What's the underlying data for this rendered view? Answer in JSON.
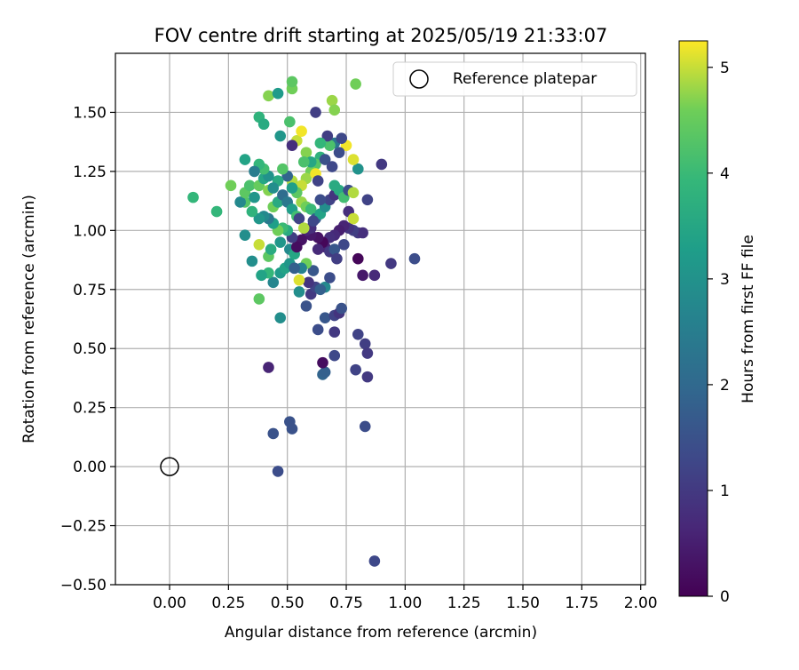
{
  "chart_data": {
    "type": "scatter",
    "title": "FOV centre drift starting at 2025/05/19 21:33:07",
    "xlabel": "Angular distance from reference (arcmin)",
    "ylabel": "Rotation from reference (arcmin)",
    "xlim": [
      -0.23,
      2.02
    ],
    "ylim": [
      -0.5,
      1.75
    ],
    "xticks": [
      0.0,
      0.25,
      0.5,
      0.75,
      1.0,
      1.25,
      1.5,
      1.75,
      2.0
    ],
    "xtick_labels": [
      "0.00",
      "0.25",
      "0.50",
      "0.75",
      "1.00",
      "1.25",
      "1.50",
      "1.75",
      "2.00"
    ],
    "yticks": [
      -0.5,
      -0.25,
      0.0,
      0.25,
      0.5,
      0.75,
      1.0,
      1.25,
      1.5
    ],
    "ytick_labels": [
      "−0.50",
      "−0.25",
      "0.00",
      "0.25",
      "0.50",
      "0.75",
      "1.00",
      "1.25",
      "1.50"
    ],
    "grid": true,
    "legend": {
      "position": "top-right",
      "label": "Reference platepar"
    },
    "reference_point": {
      "x": 0.0,
      "y": 0.0
    },
    "colorbar": {
      "label": "Hours from first FF file",
      "range": [
        0,
        5.25
      ],
      "ticks": [
        0,
        1,
        2,
        3,
        4,
        5
      ],
      "tick_labels": [
        "0",
        "1",
        "2",
        "3",
        "4",
        "5"
      ],
      "colormap": "viridis"
    },
    "points": [
      [
        0.87,
        -0.4,
        1.3
      ],
      [
        0.46,
        -0.02,
        1.4
      ],
      [
        0.44,
        0.14,
        1.5
      ],
      [
        0.52,
        0.16,
        1.5
      ],
      [
        0.51,
        0.19,
        1.5
      ],
      [
        0.83,
        0.17,
        1.4
      ],
      [
        0.65,
        0.39,
        1.9
      ],
      [
        0.66,
        0.4,
        1.8
      ],
      [
        0.7,
        0.47,
        1.3
      ],
      [
        0.79,
        0.41,
        1.2
      ],
      [
        0.84,
        0.38,
        1.0
      ],
      [
        0.65,
        0.44,
        0.2
      ],
      [
        0.42,
        0.42,
        0.6
      ],
      [
        0.8,
        0.56,
        1.2
      ],
      [
        0.83,
        0.52,
        1.1
      ],
      [
        0.84,
        0.48,
        1.0
      ],
      [
        0.63,
        0.58,
        1.4
      ],
      [
        0.7,
        0.57,
        1.0
      ],
      [
        0.66,
        0.63,
        1.6
      ],
      [
        0.7,
        0.64,
        1.2
      ],
      [
        0.72,
        0.65,
        0.9
      ],
      [
        0.73,
        0.67,
        1.5
      ],
      [
        0.58,
        0.68,
        1.5
      ],
      [
        0.47,
        0.63,
        2.9
      ],
      [
        0.38,
        0.71,
        4.4
      ],
      [
        0.55,
        0.74,
        2.9
      ],
      [
        0.6,
        0.73,
        1.0
      ],
      [
        0.62,
        0.76,
        1.2
      ],
      [
        0.66,
        0.76,
        2.8
      ],
      [
        0.64,
        0.75,
        1.8
      ],
      [
        0.68,
        0.8,
        1.4
      ],
      [
        0.59,
        0.78,
        0.9
      ],
      [
        0.55,
        0.79,
        5.1
      ],
      [
        0.61,
        0.83,
        1.6
      ],
      [
        0.58,
        0.86,
        4.6
      ],
      [
        0.56,
        0.84,
        2.6
      ],
      [
        0.47,
        0.82,
        3.2
      ],
      [
        0.49,
        0.84,
        3.4
      ],
      [
        0.51,
        0.86,
        3.1
      ],
      [
        0.44,
        0.78,
        2.7
      ],
      [
        0.42,
        0.82,
        3.9
      ],
      [
        0.39,
        0.81,
        3.4
      ],
      [
        0.35,
        0.87,
        2.9
      ],
      [
        0.32,
        0.98,
        2.9
      ],
      [
        0.38,
        0.94,
        5.0
      ],
      [
        0.42,
        0.89,
        4.4
      ],
      [
        0.43,
        0.92,
        3.6
      ],
      [
        0.47,
        0.95,
        3.1
      ],
      [
        0.51,
        0.92,
        2.8
      ],
      [
        0.53,
        0.9,
        3.5
      ],
      [
        0.53,
        0.84,
        1.8
      ],
      [
        0.8,
        0.88,
        0.1
      ],
      [
        0.82,
        0.81,
        0.4
      ],
      [
        0.87,
        0.81,
        0.7
      ],
      [
        0.94,
        0.86,
        1.0
      ],
      [
        1.04,
        0.88,
        1.4
      ],
      [
        0.8,
        0.99,
        1.0
      ],
      [
        0.82,
        0.99,
        0.8
      ],
      [
        0.78,
        1.0,
        1.1
      ],
      [
        0.76,
        1.01,
        0.9
      ],
      [
        0.74,
        1.02,
        0.6
      ],
      [
        0.72,
        1.0,
        0.5
      ],
      [
        0.7,
        0.98,
        0.7
      ],
      [
        0.68,
        0.97,
        0.8
      ],
      [
        0.66,
        0.93,
        0.6
      ],
      [
        0.68,
        0.91,
        1.0
      ],
      [
        0.7,
        0.92,
        1.6
      ],
      [
        0.65,
        0.95,
        0.1
      ],
      [
        0.63,
        0.97,
        0.3
      ],
      [
        0.6,
        0.98,
        0.4
      ],
      [
        0.58,
        1.0,
        0.6
      ],
      [
        0.56,
        0.96,
        0.3
      ],
      [
        0.54,
        0.93,
        0.2
      ],
      [
        0.52,
        0.97,
        1.1
      ],
      [
        0.5,
        1.0,
        3.6
      ],
      [
        0.48,
        1.01,
        4.0
      ],
      [
        0.46,
        1.0,
        4.6
      ],
      [
        0.44,
        1.03,
        3.3
      ],
      [
        0.42,
        1.05,
        2.4
      ],
      [
        0.4,
        1.06,
        2.8
      ],
      [
        0.38,
        1.05,
        3.1
      ],
      [
        0.35,
        1.08,
        3.8
      ],
      [
        0.32,
        1.12,
        4.3
      ],
      [
        0.3,
        1.12,
        2.8
      ],
      [
        0.26,
        1.19,
        4.6
      ],
      [
        0.2,
        1.08,
        3.9
      ],
      [
        0.1,
        1.14,
        3.9
      ],
      [
        0.32,
        1.16,
        4.4
      ],
      [
        0.34,
        1.19,
        4.2
      ],
      [
        0.36,
        1.14,
        3.1
      ],
      [
        0.38,
        1.19,
        4.5
      ],
      [
        0.4,
        1.22,
        3.5
      ],
      [
        0.42,
        1.17,
        4.7
      ],
      [
        0.44,
        1.1,
        4.6
      ],
      [
        0.46,
        1.12,
        3.6
      ],
      [
        0.48,
        1.15,
        2.1
      ],
      [
        0.5,
        1.12,
        2.4
      ],
      [
        0.52,
        1.09,
        3.3
      ],
      [
        0.54,
        1.06,
        4.1
      ],
      [
        0.56,
        1.12,
        4.8
      ],
      [
        0.58,
        1.1,
        4.6
      ],
      [
        0.6,
        1.09,
        4.0
      ],
      [
        0.62,
        1.05,
        1.8
      ],
      [
        0.64,
        1.07,
        3.4
      ],
      [
        0.66,
        1.1,
        2.9
      ],
      [
        0.68,
        1.13,
        1.2
      ],
      [
        0.7,
        1.15,
        0.9
      ],
      [
        0.72,
        1.17,
        3.6
      ],
      [
        0.74,
        1.14,
        4.1
      ],
      [
        0.76,
        1.08,
        0.8
      ],
      [
        0.78,
        1.05,
        5.0
      ],
      [
        0.76,
        1.17,
        1.4
      ],
      [
        0.78,
        1.16,
        4.9
      ],
      [
        0.8,
        1.26,
        3.0
      ],
      [
        0.84,
        1.13,
        1.2
      ],
      [
        0.9,
        1.28,
        1.0
      ],
      [
        0.78,
        1.3,
        5.1
      ],
      [
        0.75,
        1.36,
        5.2
      ],
      [
        0.72,
        1.33,
        1.4
      ],
      [
        0.7,
        1.37,
        2.3
      ],
      [
        0.68,
        1.36,
        4.2
      ],
      [
        0.67,
        1.4,
        1.1
      ],
      [
        0.73,
        1.39,
        1.3
      ],
      [
        0.64,
        1.31,
        3.8
      ],
      [
        0.62,
        1.28,
        4.3
      ],
      [
        0.6,
        1.25,
        4.6
      ],
      [
        0.58,
        1.22,
        4.8
      ],
      [
        0.56,
        1.19,
        5.0
      ],
      [
        0.54,
        1.16,
        4.4
      ],
      [
        0.52,
        1.21,
        4.9
      ],
      [
        0.5,
        1.23,
        1.9
      ],
      [
        0.48,
        1.26,
        4.3
      ],
      [
        0.46,
        1.21,
        3.6
      ],
      [
        0.44,
        1.18,
        2.9
      ],
      [
        0.42,
        1.23,
        3.0
      ],
      [
        0.4,
        1.26,
        4.1
      ],
      [
        0.38,
        1.28,
        3.9
      ],
      [
        0.36,
        1.25,
        2.5
      ],
      [
        0.32,
        1.3,
        3.4
      ],
      [
        0.38,
        1.48,
        3.8
      ],
      [
        0.4,
        1.45,
        3.6
      ],
      [
        0.42,
        1.57,
        4.7
      ],
      [
        0.46,
        1.58,
        3.2
      ],
      [
        0.52,
        1.6,
        4.6
      ],
      [
        0.52,
        1.63,
        4.4
      ],
      [
        0.51,
        1.46,
        4.2
      ],
      [
        0.47,
        1.4,
        3.1
      ],
      [
        0.54,
        1.38,
        5.0
      ],
      [
        0.56,
        1.42,
        5.2
      ],
      [
        0.52,
        1.36,
        0.8
      ],
      [
        0.62,
        1.5,
        1.1
      ],
      [
        0.64,
        1.37,
        3.9
      ],
      [
        0.58,
        1.33,
        4.7
      ],
      [
        0.6,
        1.29,
        3.5
      ],
      [
        0.66,
        1.3,
        1.5
      ],
      [
        0.69,
        1.27,
        1.3
      ],
      [
        0.62,
        1.24,
        5.2
      ],
      [
        0.63,
        1.21,
        1.2
      ],
      [
        0.69,
        1.55,
        4.8
      ],
      [
        0.7,
        1.51,
        4.7
      ],
      [
        0.79,
        1.62,
        4.6
      ],
      [
        0.7,
        1.19,
        3.6
      ],
      [
        0.57,
        1.29,
        4.2
      ],
      [
        0.64,
        1.13,
        1.4
      ],
      [
        0.52,
        1.18,
        3.3
      ],
      [
        0.55,
        1.05,
        1.2
      ],
      [
        0.6,
        1.01,
        0.8
      ],
      [
        0.61,
        1.04,
        1.3
      ],
      [
        0.57,
        1.01,
        4.9
      ],
      [
        0.63,
        0.92,
        0.7
      ],
      [
        0.74,
        0.94,
        1.3
      ],
      [
        0.71,
        0.88,
        1.1
      ]
    ]
  }
}
